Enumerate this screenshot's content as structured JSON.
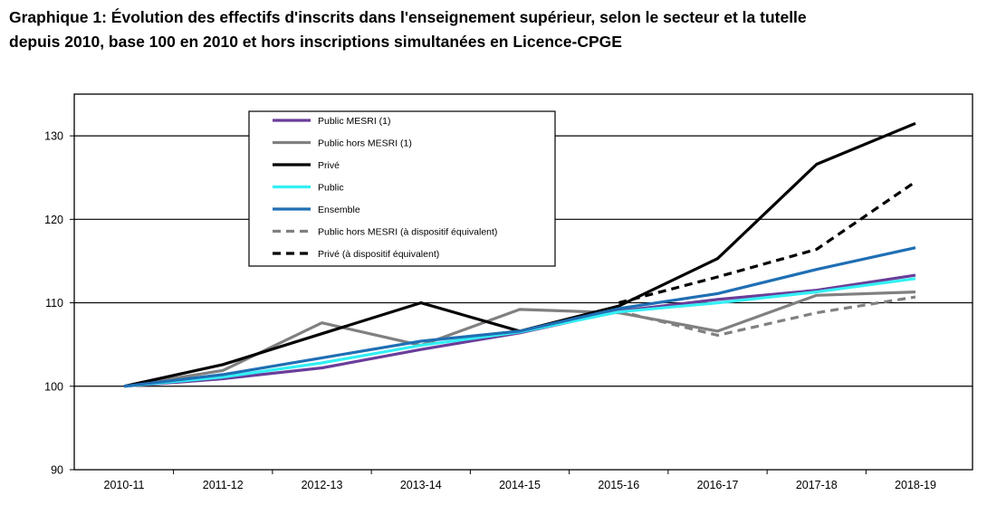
{
  "chart_data": {
    "type": "line",
    "title": "Graphique 1: Évolution des effectifs d'inscrits dans l'enseignement supérieur, selon le secteur et la tutelle",
    "subtitle": "depuis 2010, base 100 en 2010 et hors inscriptions simultanées en Licence-CPGE",
    "xlabel": "",
    "ylabel": "",
    "categories": [
      "2010-11",
      "2011-12",
      "2012-13",
      "2013-14",
      "2014-15",
      "2015-16",
      "2016-17",
      "2017-18",
      "2018-19"
    ],
    "ylim": [
      90,
      135
    ],
    "yticks": [
      90,
      100,
      110,
      120,
      130
    ],
    "grid": true,
    "legend_position": "top-left",
    "series": [
      {
        "name": "Public MESRI (1)",
        "color": "#6a3d9a",
        "dash": false,
        "values": [
          100,
          100.9,
          102.2,
          104.4,
          106.4,
          109.0,
          110.4,
          111.5,
          113.3
        ]
      },
      {
        "name": "Public hors MESRI (1)",
        "color": "#808080",
        "dash": false,
        "values": [
          100,
          101.9,
          107.6,
          104.9,
          109.2,
          108.8,
          106.6,
          110.9,
          111.3
        ]
      },
      {
        "name": "Privé",
        "color": "#000000",
        "dash": false,
        "values": [
          100,
          102.6,
          106.3,
          110.0,
          106.6,
          109.6,
          115.3,
          126.6,
          131.5
        ]
      },
      {
        "name": "Public",
        "color": "#33f0f5",
        "dash": false,
        "values": [
          100,
          101.1,
          102.8,
          104.9,
          106.5,
          108.9,
          110.0,
          111.3,
          112.9
        ]
      },
      {
        "name": "Ensemble",
        "color": "#1f6fb4",
        "dash": false,
        "values": [
          100,
          101.4,
          103.4,
          105.4,
          106.6,
          109.3,
          111.1,
          114.0,
          116.6
        ]
      },
      {
        "name": "Public hors MESRI (à dispositif équivalent)",
        "color": "#808080",
        "dash": true,
        "values": [
          null,
          null,
          null,
          null,
          null,
          109.0,
          106.1,
          108.8,
          110.7
        ]
      },
      {
        "name": "Privé (à dispositif équivalent)",
        "color": "#000000",
        "dash": true,
        "values": [
          null,
          null,
          null,
          null,
          null,
          110.0,
          113.1,
          116.4,
          124.5
        ]
      }
    ]
  }
}
